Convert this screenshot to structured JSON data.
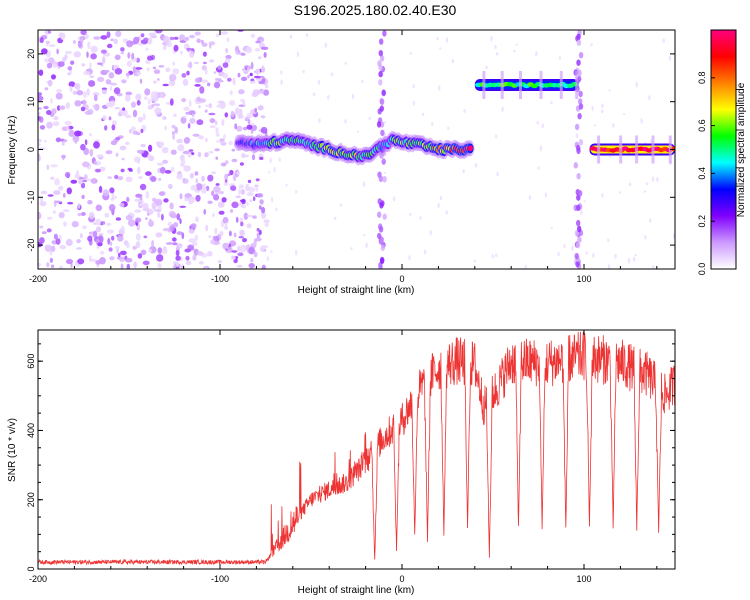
{
  "title": "S196.2025.180.02.40.E30",
  "chart_data": [
    {
      "type": "heatmap",
      "xlabel": "Height of straight line (km)",
      "ylabel": "Frequency (Hz)",
      "xlim": [
        -200,
        150
      ],
      "ylim": [
        -25,
        25
      ],
      "x_ticks": [
        -200,
        -100,
        0,
        100
      ],
      "y_ticks": [
        -20,
        -10,
        0,
        10,
        20
      ],
      "colorbar": {
        "label": "Normalized spectral amplitude",
        "range": [
          0,
          1
        ],
        "ticks": [
          0.0,
          0.2,
          0.4,
          0.6,
          0.8
        ],
        "tick_labels": [
          "0.0",
          "0.2",
          "0.4",
          "0.6",
          "0.8"
        ],
        "colormap": [
          "#ffffff",
          "#cc99ff",
          "#8000ff",
          "#0000ff",
          "#00ffff",
          "#00ff00",
          "#ffff00",
          "#ff8000",
          "#ff0000",
          "#ff0080"
        ]
      },
      "noise_region": [
        -200,
        -78
      ],
      "ridge": [
        {
          "x": -90,
          "f": 1.5,
          "a": 0.25
        },
        {
          "x": -80,
          "f": 1.0,
          "a": 0.4
        },
        {
          "x": -70,
          "f": 1.5,
          "a": 0.55
        },
        {
          "x": -60,
          "f": 2.0,
          "a": 0.5
        },
        {
          "x": -50,
          "f": 1.0,
          "a": 0.45
        },
        {
          "x": -40,
          "f": 0.0,
          "a": 0.6
        },
        {
          "x": -30,
          "f": -1.0,
          "a": 0.65
        },
        {
          "x": -20,
          "f": -1.5,
          "a": 0.55
        },
        {
          "x": -12,
          "f": 0.5,
          "a": 0.45
        },
        {
          "x": -5,
          "f": 2.0,
          "a": 0.5
        },
        {
          "x": 0,
          "f": 1.5,
          "a": 0.55
        },
        {
          "x": 10,
          "f": 1.0,
          "a": 0.6
        },
        {
          "x": 20,
          "f": 0.0,
          "a": 0.7
        },
        {
          "x": 30,
          "f": 0.0,
          "a": 0.85
        },
        {
          "x": 38,
          "f": 0.0,
          "a": 0.95
        }
      ],
      "bands": [
        {
          "x0": 40,
          "x1": 97,
          "f": 13.5,
          "a": 0.5
        },
        {
          "x0": 103,
          "x1": 150,
          "f": 0.0,
          "a": 0.97
        }
      ],
      "gaps": [
        -11,
        97
      ]
    },
    {
      "type": "line",
      "xlabel": "Height of straight line (km)",
      "ylabel": "SNR (10 * v/v)",
      "xlim": [
        -200,
        150
      ],
      "ylim": [
        0,
        690
      ],
      "x_ticks": [
        -200,
        -100,
        0,
        100
      ],
      "y_ticks": [
        0,
        200,
        400,
        600
      ],
      "color": "#ee3333",
      "envelope": [
        {
          "x": -200,
          "y": 20
        },
        {
          "x": -75,
          "y": 20
        },
        {
          "x": -68,
          "y": 70
        },
        {
          "x": -60,
          "y": 130
        },
        {
          "x": -50,
          "y": 200
        },
        {
          "x": -40,
          "y": 230
        },
        {
          "x": -30,
          "y": 250
        },
        {
          "x": -20,
          "y": 310
        },
        {
          "x": -10,
          "y": 380
        },
        {
          "x": 0,
          "y": 430
        },
        {
          "x": 10,
          "y": 520
        },
        {
          "x": 20,
          "y": 580
        },
        {
          "x": 30,
          "y": 600
        },
        {
          "x": 40,
          "y": 590
        },
        {
          "x": 45,
          "y": 470
        },
        {
          "x": 52,
          "y": 520
        },
        {
          "x": 60,
          "y": 600
        },
        {
          "x": 80,
          "y": 595
        },
        {
          "x": 100,
          "y": 615
        },
        {
          "x": 120,
          "y": 595
        },
        {
          "x": 135,
          "y": 560
        },
        {
          "x": 145,
          "y": 500
        },
        {
          "x": 150,
          "y": 540
        }
      ],
      "dips": [
        {
          "x": -15,
          "y": 20
        },
        {
          "x": -3,
          "y": 50
        },
        {
          "x": 7,
          "y": 90
        },
        {
          "x": 14,
          "y": 70
        },
        {
          "x": 23,
          "y": 90
        },
        {
          "x": 36,
          "y": 110
        },
        {
          "x": 48,
          "y": 30
        },
        {
          "x": 64,
          "y": 110
        },
        {
          "x": 77,
          "y": 110
        },
        {
          "x": 90,
          "y": 110
        },
        {
          "x": 103,
          "y": 110
        },
        {
          "x": 116,
          "y": 110
        },
        {
          "x": 129,
          "y": 110
        },
        {
          "x": 141,
          "y": 100
        }
      ]
    }
  ]
}
